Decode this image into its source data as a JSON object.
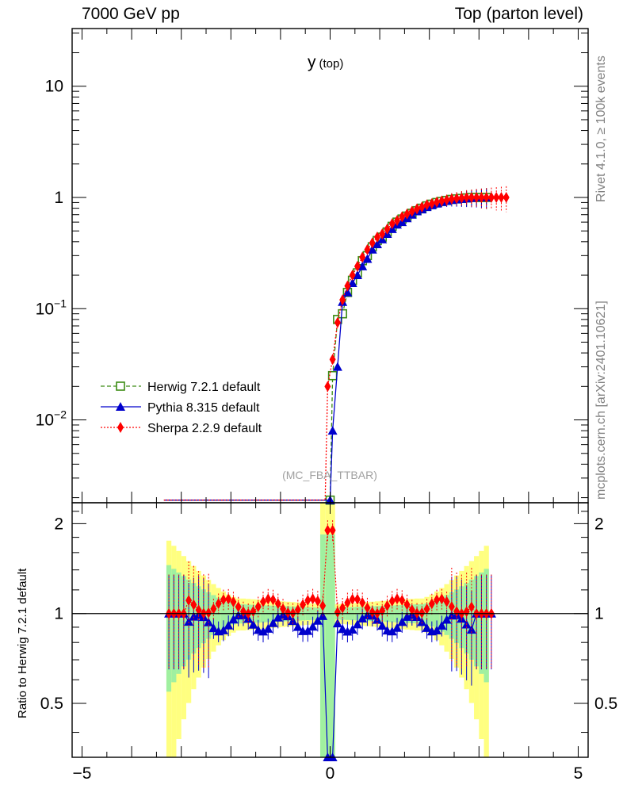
{
  "header": {
    "left": "7000 GeV pp",
    "right": "Top (parton level)"
  },
  "side_labels": {
    "rivet": "Rivet 4.1.0, ≥ 100k events",
    "mcplots": "mcplots.cern.ch [arXiv:2401.10621]"
  },
  "chart_data": {
    "type": "line",
    "title": "y",
    "title_sub": "(top)",
    "analysis": "(MC_FBA_TTBAR)",
    "xlabel": "",
    "ylabel": "",
    "xlim": [
      -5.2,
      5.2
    ],
    "ylim": [
      0.0018,
      33
    ],
    "yscale": "log",
    "x_ticks": [
      "−5",
      "0",
      "5"
    ],
    "y_ticks": [
      {
        "value": 10,
        "label": "10"
      },
      {
        "value": 1,
        "label": "1"
      },
      {
        "value": 0.1,
        "label": "10",
        "exp": "−1"
      },
      {
        "value": 0.01,
        "label": "10",
        "exp": "−2"
      }
    ],
    "legend": [
      "Herwig 7.2.1 default",
      "Pythia 8.315 default",
      "Sherpa 2.2.9 default"
    ],
    "colors": {
      "herwig": "#3c8c14",
      "pythia": "#0000cc",
      "sherpa": "#ff0000",
      "band_yellow": "#ffff80",
      "band_green": "#a0f0a0"
    },
    "series": [
      {
        "name": "Herwig 7.2.1 default",
        "marker": "open-square",
        "style": "dashed",
        "x": [
          0.0,
          0.05,
          0.15,
          0.25,
          0.35,
          0.45,
          0.55,
          0.65,
          0.75,
          0.85,
          0.95,
          1.05,
          1.15,
          1.25,
          1.35,
          1.45,
          1.55,
          1.65,
          1.75,
          1.85,
          1.95,
          2.05,
          2.15,
          2.25,
          2.35,
          2.45,
          2.55,
          2.65,
          2.75,
          2.85,
          2.95,
          3.05,
          3.15
        ],
        "values": [
          0.0019,
          0.025,
          0.08,
          0.09,
          0.14,
          0.18,
          0.21,
          0.27,
          0.3,
          0.36,
          0.41,
          0.44,
          0.49,
          0.55,
          0.6,
          0.64,
          0.68,
          0.72,
          0.76,
          0.8,
          0.84,
          0.87,
          0.9,
          0.92,
          0.94,
          0.96,
          0.97,
          0.98,
          0.99,
          1.0,
          1.0,
          1.0,
          1.0
        ]
      },
      {
        "name": "Pythia 8.315 default",
        "marker": "filled-triangle",
        "style": "solid",
        "x": [
          0.0,
          0.05,
          0.15,
          0.25,
          0.35,
          0.45,
          0.55,
          0.65,
          0.75,
          0.85,
          0.95,
          1.05,
          1.15,
          1.25,
          1.35,
          1.45,
          1.55,
          1.65,
          1.75,
          1.85,
          1.95,
          2.05,
          2.15,
          2.25,
          2.35,
          2.45,
          2.55,
          2.65,
          2.75,
          2.85,
          2.95,
          3.05,
          3.15
        ],
        "values": [
          0.0019,
          0.008,
          0.03,
          0.115,
          0.14,
          0.17,
          0.2,
          0.24,
          0.28,
          0.34,
          0.38,
          0.42,
          0.47,
          0.52,
          0.57,
          0.6,
          0.65,
          0.7,
          0.75,
          0.78,
          0.82,
          0.85,
          0.88,
          0.91,
          0.93,
          0.95,
          0.96,
          0.97,
          0.98,
          0.99,
          1.0,
          1.0,
          1.0
        ]
      },
      {
        "name": "Sherpa 2.2.9 default",
        "marker": "filled-diamond",
        "style": "dotted",
        "x": [
          -0.05,
          0.05,
          0.15,
          0.25,
          0.35,
          0.45,
          0.55,
          0.65,
          0.75,
          0.85,
          0.95,
          1.05,
          1.15,
          1.25,
          1.35,
          1.45,
          1.55,
          1.65,
          1.75,
          1.85,
          1.95,
          2.05,
          2.15,
          2.25,
          2.35,
          2.45,
          2.55,
          2.65,
          2.75,
          2.85,
          2.95,
          3.05,
          3.15,
          3.25,
          3.35,
          3.45,
          3.55
        ],
        "values": [
          0.02,
          0.035,
          0.075,
          0.12,
          0.16,
          0.2,
          0.24,
          0.29,
          0.34,
          0.39,
          0.44,
          0.47,
          0.52,
          0.58,
          0.62,
          0.67,
          0.71,
          0.75,
          0.79,
          0.82,
          0.86,
          0.88,
          0.91,
          0.93,
          0.95,
          0.97,
          0.98,
          0.99,
          1.0,
          1.0,
          1.0,
          1.0,
          1.0,
          1.0,
          1.0,
          1.0,
          1.0
        ]
      }
    ],
    "ratio": {
      "ylabel": "Ratio to Herwig 7.2.1 default",
      "ylim": [
        0.33,
        2.35
      ],
      "y_ticks": [
        {
          "value": 2,
          "label": "2"
        },
        {
          "value": 1,
          "label": "1"
        },
        {
          "value": 0.5,
          "label": "0.5"
        }
      ]
    }
  }
}
